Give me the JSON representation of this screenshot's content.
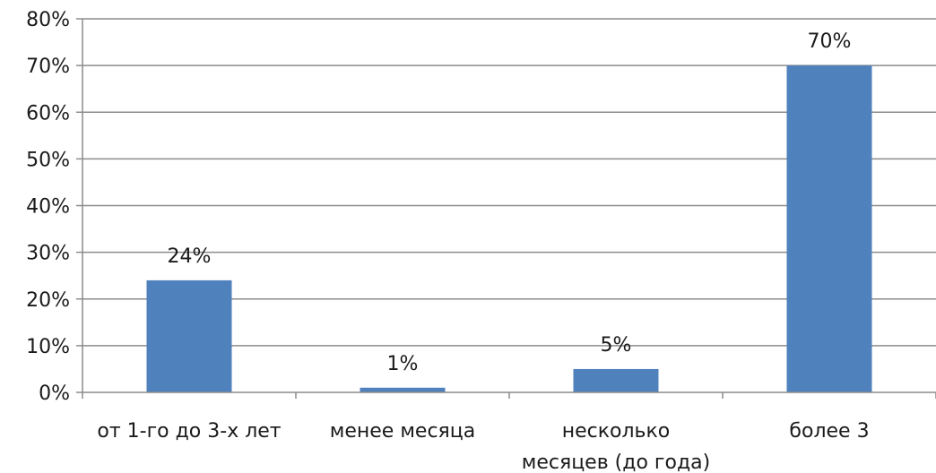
{
  "chart_data": {
    "type": "bar",
    "categories": [
      "от 1-го до 3-х лет",
      "менее  месяца",
      "несколько месяцев  (до года)",
      "более 3"
    ],
    "values": [
      24,
      1,
      5,
      70
    ],
    "data_labels": [
      "24%",
      "1%",
      "5%",
      "70%"
    ],
    "yticks": [
      "0%",
      "10%",
      "20%",
      "30%",
      "40%",
      "50%",
      "60%",
      "70%",
      "80%"
    ],
    "ylim": [
      0,
      80
    ],
    "grid": true,
    "legend": "none",
    "bar_color": "#4f81bd",
    "grid_color": "#8c8c8c"
  }
}
